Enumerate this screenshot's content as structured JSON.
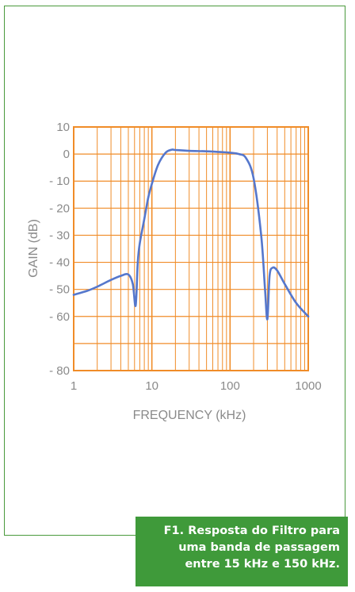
{
  "caption": {
    "lines": [
      "F1. Resposta do Filtro para",
      "uma banda de passagem",
      "entre 15 kHz e 150 kHz."
    ]
  },
  "colors": {
    "frame": "#4a9a3c",
    "caption_bg": "#3f9a3a",
    "grid": "#f08c28",
    "curve": "#5577cc",
    "text": "#8a8a8a"
  },
  "chart_data": {
    "type": "line",
    "title": "",
    "xlabel": "FREQUENCY (kHz)",
    "ylabel": "GAIN (dB)",
    "x_scale": "log",
    "xlim": [
      1,
      1000
    ],
    "ylim": [
      -80,
      10
    ],
    "x_ticks": [
      1,
      10,
      100,
      1000
    ],
    "x_tick_labels": [
      "1",
      "10",
      "100",
      "1000"
    ],
    "y_ticks": [
      10,
      0,
      -10,
      -20,
      -30,
      -40,
      -50,
      -60,
      -80
    ],
    "y_tick_labels": [
      "10",
      "0",
      "- 10",
      "- 20",
      "- 30",
      "- 40",
      "- 50",
      "- 60",
      "- 80"
    ],
    "grid": true,
    "series": [
      {
        "x": [
          1,
          1.5,
          2,
          3,
          4,
          5,
          5.7,
          6.2,
          6.6,
          7,
          8,
          9,
          10,
          12,
          15,
          18,
          20,
          30,
          50,
          80,
          100,
          130,
          160,
          200,
          250,
          280,
          300,
          320,
          350,
          400,
          500,
          700,
          1000
        ],
        "y": [
          -52,
          -50.5,
          -49,
          -46.5,
          -45,
          -44.5,
          -48,
          -56,
          -40,
          -33,
          -24,
          -16,
          -11,
          -4,
          0.5,
          1.6,
          1.5,
          1.2,
          1,
          0.7,
          0.5,
          0,
          -1.5,
          -9,
          -30,
          -50,
          -61,
          -45,
          -42,
          -43,
          -48,
          -55,
          -60
        ]
      }
    ]
  }
}
